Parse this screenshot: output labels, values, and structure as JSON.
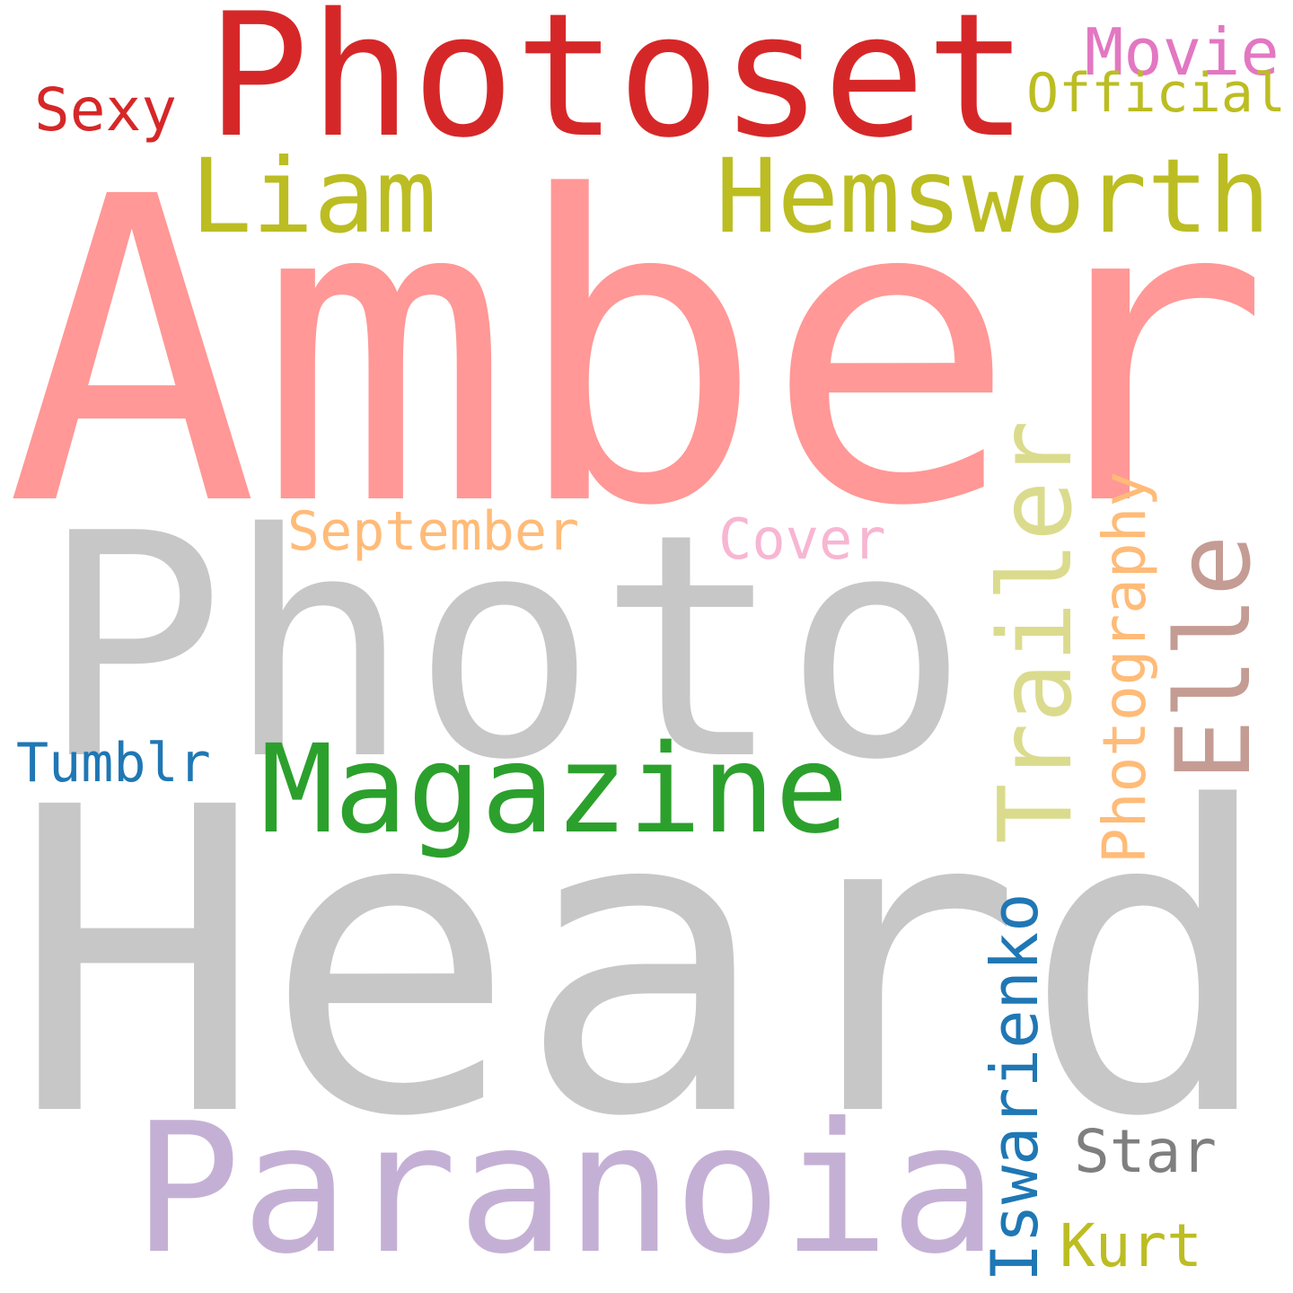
{
  "cloud": {
    "background": "#ffffff",
    "words": {
      "photoset": {
        "text": "Photoset",
        "color": "#d62728"
      },
      "movie": {
        "text": "Movie",
        "color": "#e377c2"
      },
      "official": {
        "text": "Official",
        "color": "#bcbd22"
      },
      "sexy": {
        "text": "Sexy",
        "color": "#d62728"
      },
      "liam": {
        "text": "Liam",
        "color": "#bcbd22"
      },
      "hemsworth": {
        "text": "Hemsworth",
        "color": "#bcbd22"
      },
      "amber": {
        "text": "Amber",
        "color": "#ff9896"
      },
      "photo": {
        "text": "Photo",
        "color": "#c7c7c7"
      },
      "september": {
        "text": "September",
        "color": "#ffbb78"
      },
      "cover": {
        "text": "Cover",
        "color": "#f7b6d2"
      },
      "trailer": {
        "text": "Trailer",
        "color": "#dbdb8d"
      },
      "photography": {
        "text": "Photography",
        "color": "#ffbb78"
      },
      "elle": {
        "text": "Elle",
        "color": "#c49c94"
      },
      "tumblr": {
        "text": "Tumblr",
        "color": "#1f77b4"
      },
      "magazine": {
        "text": "Magazine",
        "color": "#2ca02c"
      },
      "heard": {
        "text": "Heard",
        "color": "#c7c7c7"
      },
      "iswarienko": {
        "text": "Iswarienko",
        "color": "#1f77b4"
      },
      "paranoia": {
        "text": "Paranoia",
        "color": "#c5b0d5"
      },
      "star": {
        "text": "Star",
        "color": "#7f7f7f"
      },
      "kurt": {
        "text": "Kurt",
        "color": "#bcbd22"
      }
    }
  }
}
